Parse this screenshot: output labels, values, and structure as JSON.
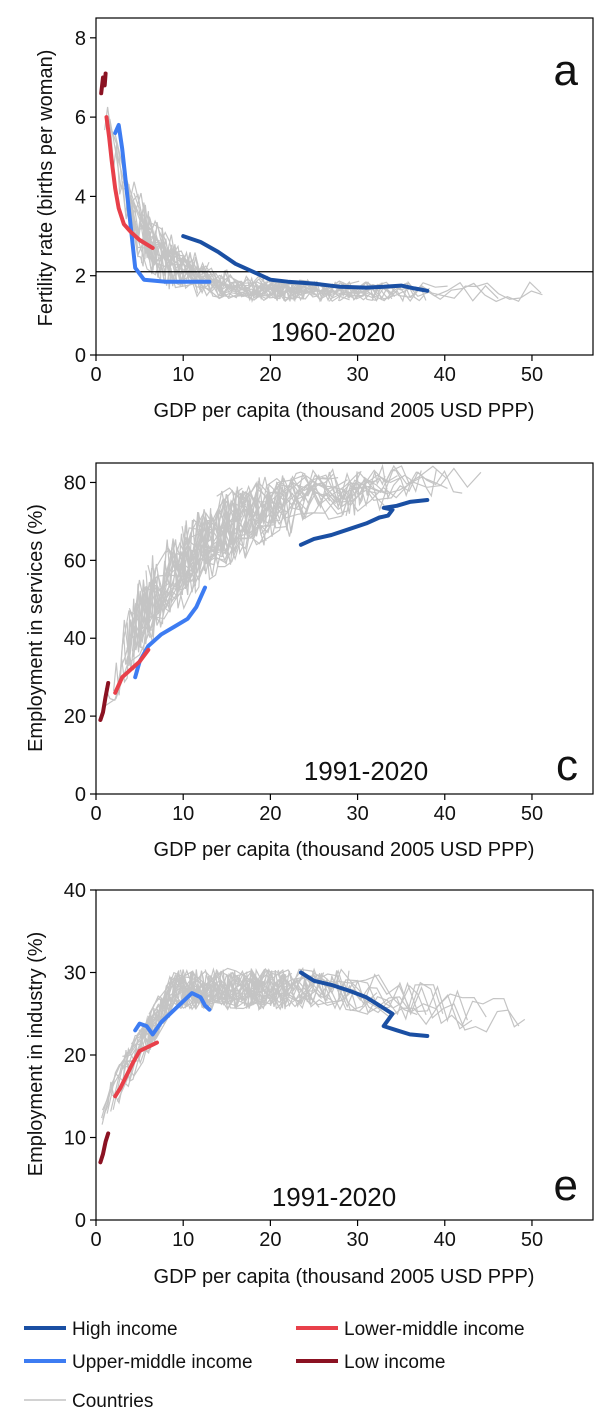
{
  "chart_data": [
    {
      "type": "line",
      "panel": "a",
      "period": "1960-2020",
      "xlabel": "GDP per capita (thousand 2005 USD PPP)",
      "ylabel": "Fertility rate (births per woman)",
      "xlim": [
        0,
        57
      ],
      "ylim": [
        0,
        8.5
      ],
      "xticks": [
        0,
        10,
        20,
        30,
        40,
        50
      ],
      "yticks": [
        0,
        2,
        4,
        6,
        8
      ],
      "reference_line_y": 2.1,
      "series": [
        {
          "name": "High income",
          "color": "#1a4fa3",
          "x": [
            10,
            12,
            14,
            16,
            18,
            20,
            22,
            25,
            28,
            31,
            33,
            35,
            36.5,
            38
          ],
          "y": [
            3.0,
            2.85,
            2.6,
            2.3,
            2.1,
            1.9,
            1.85,
            1.8,
            1.72,
            1.7,
            1.72,
            1.75,
            1.68,
            1.62
          ]
        },
        {
          "name": "Upper-middle income",
          "color": "#3d7cf2",
          "x": [
            2.2,
            2.6,
            3.0,
            3.5,
            4.0,
            4.2,
            4.5,
            5.5,
            8,
            10,
            13
          ],
          "y": [
            5.6,
            5.8,
            5.2,
            4.2,
            3.2,
            2.8,
            2.2,
            1.9,
            1.85,
            1.85,
            1.85
          ]
        },
        {
          "name": "Lower-middle income",
          "color": "#e8404a",
          "x": [
            1.2,
            1.5,
            1.8,
            2.2,
            2.6,
            3.2,
            4,
            5,
            6.5
          ],
          "y": [
            6.0,
            5.5,
            4.9,
            4.2,
            3.7,
            3.3,
            3.1,
            2.9,
            2.7
          ]
        },
        {
          "name": "Low income",
          "color": "#8b1222",
          "x": [
            0.6,
            0.8,
            1.0,
            1.1
          ],
          "y": [
            6.6,
            7.0,
            6.8,
            7.1
          ]
        }
      ]
    },
    {
      "type": "line",
      "panel": "c",
      "period": "1991-2020",
      "xlabel": "GDP per capita (thousand 2005 USD PPP)",
      "ylabel": "Employment in services (%)",
      "xlim": [
        0,
        57
      ],
      "ylim": [
        0,
        85
      ],
      "xticks": [
        0,
        10,
        20,
        30,
        40,
        50
      ],
      "yticks": [
        0,
        20,
        40,
        60,
        80
      ],
      "series": [
        {
          "name": "High income",
          "color": "#1a4fa3",
          "x": [
            23.5,
            25,
            27,
            29,
            31,
            32.5,
            33.5,
            34,
            33,
            34.5,
            36,
            38
          ],
          "y": [
            64,
            65.5,
            66.5,
            68,
            69.5,
            71,
            71.5,
            73,
            73.5,
            74,
            75,
            75.5
          ]
        },
        {
          "name": "Upper-middle income",
          "color": "#3d7cf2",
          "x": [
            4.5,
            5.0,
            6.0,
            7.5,
            9,
            10.5,
            11.5,
            12.5
          ],
          "y": [
            30,
            34,
            38,
            41,
            43,
            45,
            48,
            53
          ]
        },
        {
          "name": "Lower-middle income",
          "color": "#e8404a",
          "x": [
            2.2,
            3.0,
            4.0,
            5.0,
            6.0
          ],
          "y": [
            26,
            30,
            32,
            34,
            37
          ]
        },
        {
          "name": "Low income",
          "color": "#8b1222",
          "x": [
            0.5,
            0.8,
            1.1,
            1.4
          ],
          "y": [
            19,
            21,
            25,
            28.5
          ]
        }
      ]
    },
    {
      "type": "line",
      "panel": "e",
      "period": "1991-2020",
      "xlabel": "GDP per capita (thousand 2005 USD PPP)",
      "ylabel": "Employment in industry (%)",
      "xlim": [
        0,
        57
      ],
      "ylim": [
        0,
        40
      ],
      "xticks": [
        0,
        10,
        20,
        30,
        40,
        50
      ],
      "yticks": [
        0,
        10,
        20,
        30,
        40
      ],
      "series": [
        {
          "name": "High income",
          "color": "#1a4fa3",
          "x": [
            23.5,
            25,
            27,
            29,
            31,
            32.5,
            34,
            33,
            34.5,
            36,
            38
          ],
          "y": [
            30,
            29,
            28.5,
            27.8,
            27,
            26,
            25,
            23.5,
            23,
            22.5,
            22.3
          ]
        },
        {
          "name": "Upper-middle income",
          "color": "#3d7cf2",
          "x": [
            4.5,
            5.0,
            5.8,
            6.5,
            7.5,
            9,
            11,
            12,
            12.5,
            13
          ],
          "y": [
            23,
            23.8,
            23.5,
            22.5,
            24,
            25.5,
            27.5,
            27,
            26,
            25.5
          ]
        },
        {
          "name": "Lower-middle income",
          "color": "#e8404a",
          "x": [
            2.2,
            2.8,
            3.5,
            4.2,
            5.0,
            6.0,
            7.0
          ],
          "y": [
            15,
            16,
            17.5,
            19,
            20.5,
            21,
            21.5
          ]
        },
        {
          "name": "Low income",
          "color": "#8b1222",
          "x": [
            0.5,
            0.8,
            1.1,
            1.4
          ],
          "y": [
            7,
            8,
            9.5,
            10.5
          ]
        }
      ]
    }
  ],
  "legend": {
    "items": [
      {
        "label": "High income",
        "color": "#1a4fa3"
      },
      {
        "label": "Lower-middle income",
        "color": "#e8404a"
      },
      {
        "label": "Upper-middle income",
        "color": "#3d7cf2"
      },
      {
        "label": "Low income",
        "color": "#8b1222"
      },
      {
        "label": "Countries",
        "color": "#c4c4c4"
      }
    ]
  }
}
